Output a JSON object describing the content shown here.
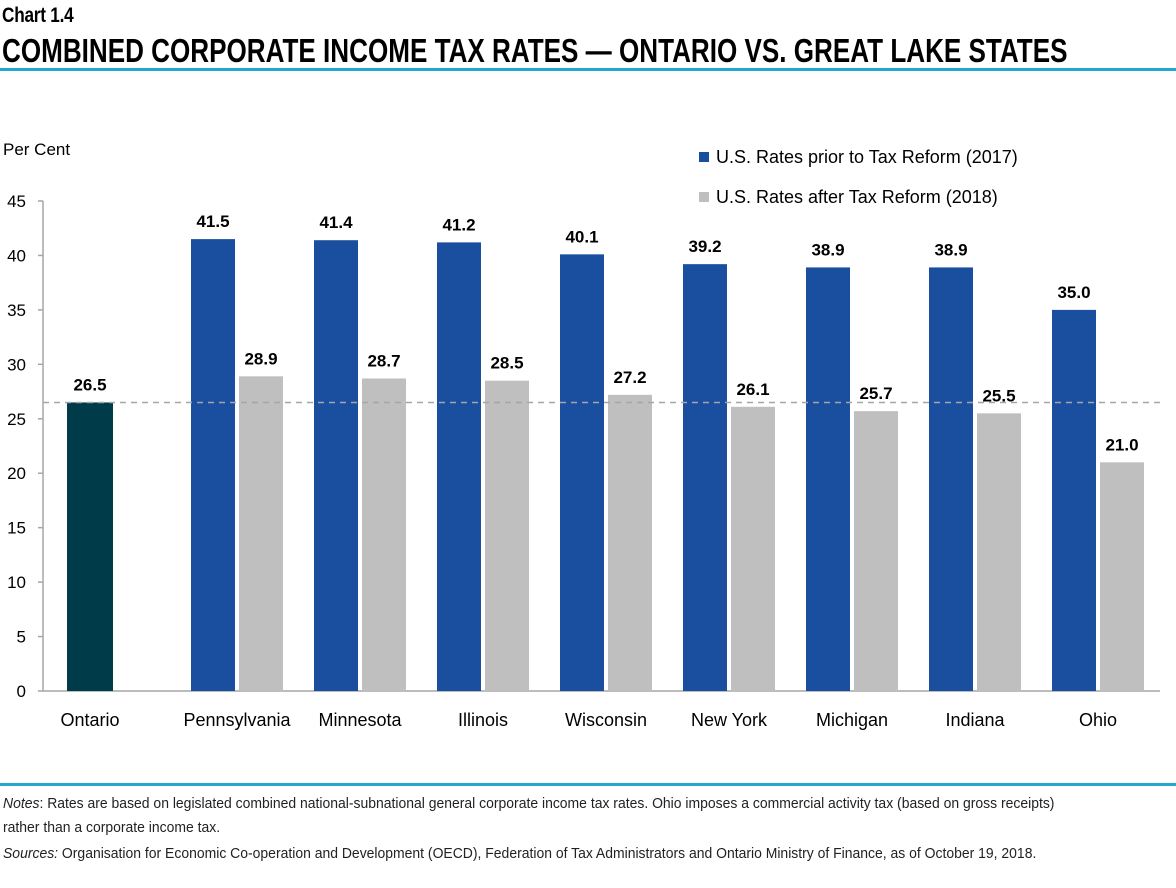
{
  "header": {
    "chart_number": "Chart 1.4",
    "title": "COMBINED CORPORATE INCOME TAX RATES — ONTARIO VS. GREAT LAKE STATES"
  },
  "chart_data": {
    "type": "bar",
    "ylabel": "Per Cent",
    "ylim": [
      0,
      45
    ],
    "yticks": [
      0,
      5,
      10,
      15,
      20,
      25,
      30,
      35,
      40,
      45
    ],
    "categories": [
      "Ontario",
      "Pennsylvania",
      "Minnesota",
      "Illinois",
      "Wisconsin",
      "New York",
      "Michigan",
      "Indiana",
      "Ohio"
    ],
    "ontario": {
      "value": 26.5,
      "label": "26.5",
      "color": "#003b4a"
    },
    "series": [
      {
        "name": "U.S. Rates prior to Tax Reform (2017)",
        "color": "#1a4fa0",
        "values": [
          null,
          41.5,
          41.4,
          41.2,
          40.1,
          39.2,
          38.9,
          38.9,
          35.0
        ],
        "labels": [
          "",
          "41.5",
          "41.4",
          "41.2",
          "40.1",
          "39.2",
          "38.9",
          "38.9",
          "35.0"
        ]
      },
      {
        "name": "U.S. Rates after Tax Reform (2018)",
        "color": "#bfbfbf",
        "values": [
          null,
          28.9,
          28.7,
          28.5,
          27.2,
          26.1,
          25.7,
          25.5,
          21.0
        ],
        "labels": [
          "",
          "28.9",
          "28.7",
          "28.5",
          "27.2",
          "26.1",
          "25.7",
          "25.5",
          "21.0"
        ]
      }
    ],
    "reference_line": {
      "value": 26.5,
      "style": "dashed"
    },
    "legend": "top-right",
    "grid": false
  },
  "footer": {
    "notes_label": "Notes",
    "notes_text": ": Rates are based on legislated combined national-subnational general corporate income tax rates. Ohio imposes a commercial activity tax (based on gross receipts) rather than a corporate income tax.",
    "sources_label": "Sources:",
    "sources_text": " Organisation for Economic Co-operation and Development (OECD), Federation of Tax Administrators and Ontario Ministry of Finance, as of October 19, 2018."
  }
}
